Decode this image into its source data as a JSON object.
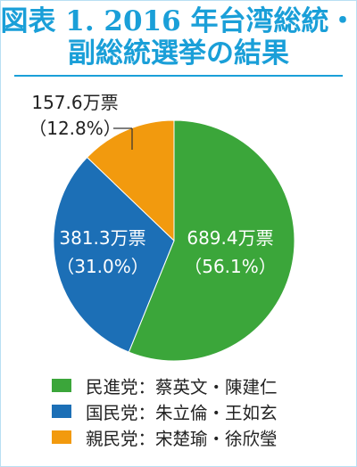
{
  "title": {
    "line1": "図表 1. 2016 年台湾総統・",
    "line2": "副総統選挙の結果"
  },
  "colors": {
    "title": "#1a9fd8",
    "dpp": "#3ba63a",
    "kmt": "#1c6fb6",
    "pfp": "#f29a0e"
  },
  "chart_data": {
    "type": "pie",
    "title": "",
    "slices": [
      {
        "legend": "民進党：蔡英文・陳建仁",
        "votes_label": "689.4万票",
        "pct_label": "（56.1%）",
        "value": 689.4,
        "percent": 56.1,
        "color": "#3ba63a"
      },
      {
        "legend": "国民党：朱立倫・王如玄",
        "votes_label": "381.3万票",
        "pct_label": "（31.0%）",
        "value": 381.3,
        "percent": 31.0,
        "color": "#1c6fb6"
      },
      {
        "legend": "親民党：宋楚瑜・徐欣瑩",
        "votes_label": "157.6万票",
        "pct_label": "（12.8%）",
        "value": 157.6,
        "percent": 12.8,
        "color": "#f29a0e"
      }
    ],
    "start": "12 o'clock",
    "direction": "clockwise",
    "legend_position": "bottom"
  }
}
